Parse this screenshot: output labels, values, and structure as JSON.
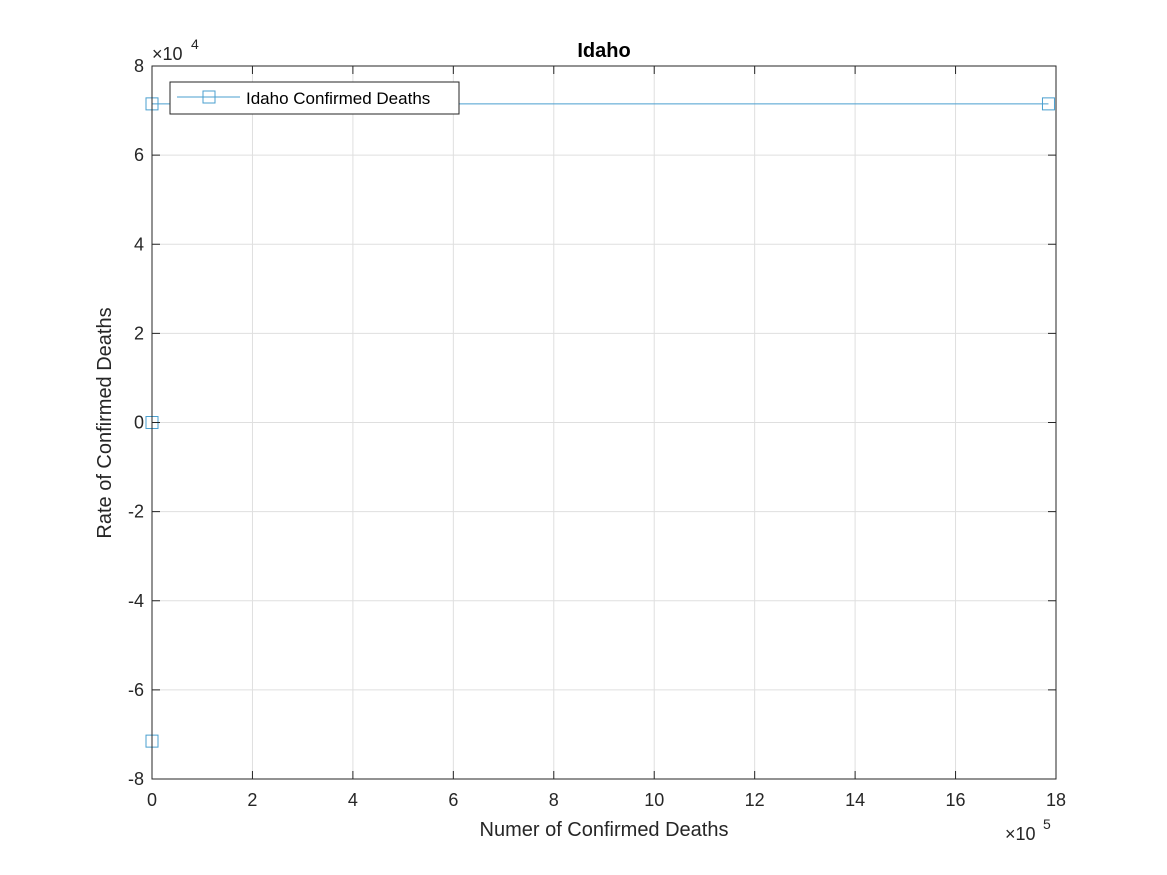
{
  "chart_data": {
    "type": "line",
    "title": "Idaho",
    "xlabel": "Numer of Confirmed Deaths",
    "ylabel": "Rate of Confirmed Deaths",
    "x_exponent_label": "×10",
    "x_exponent_power": "5",
    "y_exponent_label": "×10",
    "y_exponent_power": "4",
    "xlim": [
      0,
      1800000
    ],
    "ylim": [
      -80000,
      80000
    ],
    "x_ticks": [
      0,
      2,
      4,
      6,
      8,
      10,
      12,
      14,
      16,
      18
    ],
    "y_ticks": [
      -8,
      -6,
      -4,
      -2,
      0,
      2,
      4,
      6,
      8
    ],
    "grid": true,
    "legend_location": "top-left",
    "series": [
      {
        "name": "Idaho Confirmed Deaths",
        "color": "#4a9fcf",
        "marker": "square",
        "x": [
          0,
          0,
          0,
          1,
          1785000
        ],
        "y": [
          -71500,
          0,
          0,
          71500,
          71500
        ]
      }
    ]
  }
}
